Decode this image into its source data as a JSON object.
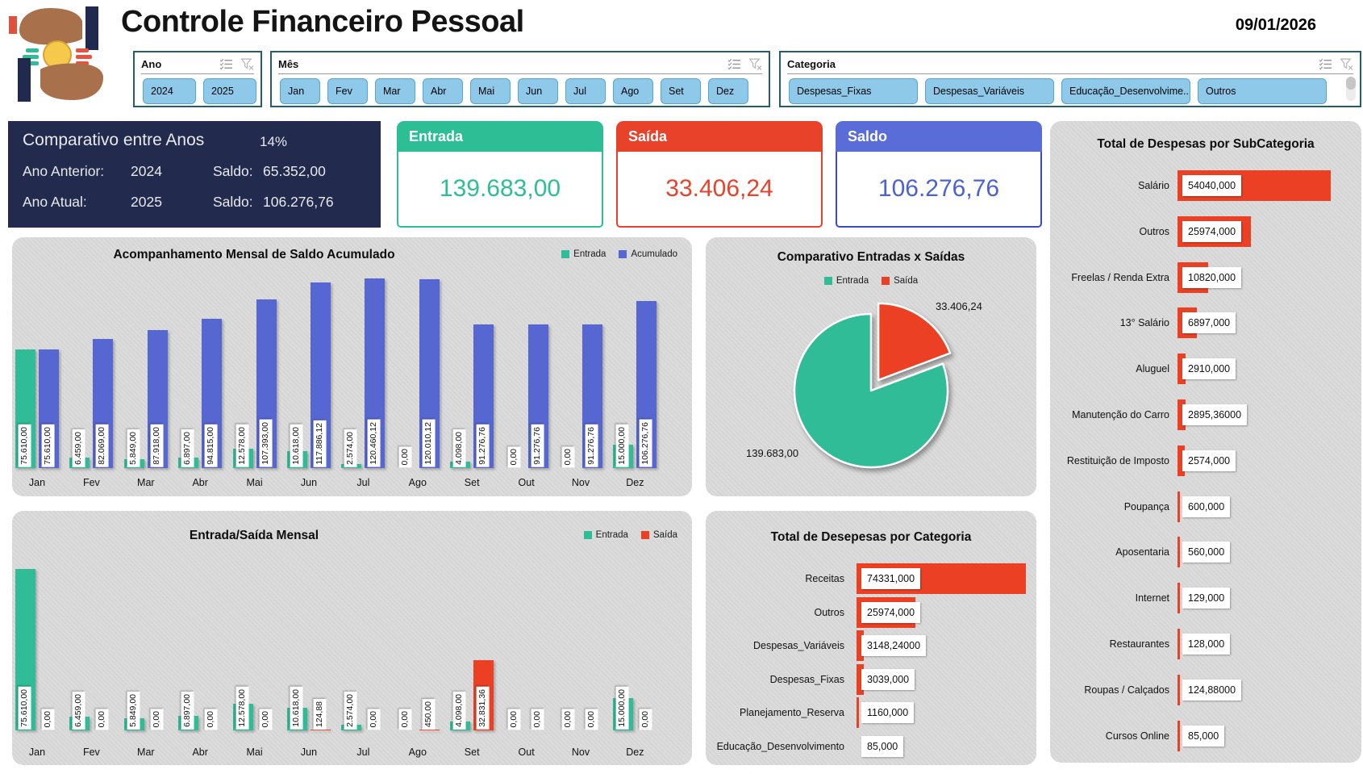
{
  "header": {
    "title": "Controle Financeiro Pessoal",
    "date": "09/01/2026",
    "logo": "hands-holding-coin-logo"
  },
  "slicers": {
    "ano": {
      "label": "Ano",
      "items": [
        "2024",
        "2025"
      ]
    },
    "mes": {
      "label": "Mês",
      "items": [
        "Jan",
        "Fev",
        "Mar",
        "Abr",
        "Mai",
        "Jun",
        "Jul",
        "Ago",
        "Set",
        "Dez"
      ]
    },
    "categoria": {
      "label": "Categoria",
      "items": [
        "Despesas_Fixas",
        "Despesas_Variáveis",
        "Educação_Desenvolvime...",
        "Outros"
      ]
    }
  },
  "comparativo": {
    "title": "Comparativo entre Anos",
    "pct": "14%",
    "rows": [
      {
        "label": "Ano Anterior:",
        "year": "2024",
        "saldo_label": "Saldo:",
        "saldo": "65.352,00"
      },
      {
        "label": "Ano Atual:",
        "year": "2025",
        "saldo_label": "Saldo:",
        "saldo": "106.276,76"
      }
    ]
  },
  "kpis": [
    {
      "label": "Entrada",
      "value": "139.683,00"
    },
    {
      "label": "Saída",
      "value": "33.406,24"
    },
    {
      "label": "Saldo",
      "value": "106.276,76"
    }
  ],
  "charts": {
    "acompanhamento": {
      "type": "bar",
      "title": "Acompanhamento Mensal de Saldo Acumulado",
      "legend": [
        "Entrada",
        "Acumulado"
      ],
      "categories": [
        "Jan",
        "Fev",
        "Mar",
        "Abr",
        "Mai",
        "Jun",
        "Jul",
        "Ago",
        "Set",
        "Out",
        "Nov",
        "Dez"
      ],
      "series": [
        {
          "name": "Entrada",
          "values": [
            75610,
            6459,
            5849,
            6897,
            12578,
            10618,
            2574,
            0,
            4098,
            0,
            0,
            15000
          ],
          "labels": [
            "75.610,00",
            "6.459,00",
            "5.849,00",
            "6.897,00",
            "12.578,00",
            "10.618,00",
            "2.574,00",
            "0,00",
            "4.098,00",
            "0,00",
            "0,00",
            "15.000,00"
          ]
        },
        {
          "name": "Acumulado",
          "values": [
            75610,
            82069,
            87918,
            94815,
            107393,
            117886.12,
            120460.12,
            120010.12,
            91276.76,
            91276.76,
            91276.76,
            106276.76
          ],
          "labels": [
            "75.610,00",
            "82.069,00",
            "87.918,00",
            "94.815,00",
            "107.393,00",
            "117.886,12",
            "120.460,12",
            "120.010,12",
            "91.276,76",
            "91.276,76",
            "91.276,76",
            "106.276,76"
          ]
        }
      ]
    },
    "pie": {
      "type": "pie",
      "title": "Comparativo Entradas x Saídas",
      "legend": [
        "Entrada",
        "Saída"
      ],
      "entrada": 139683,
      "saida": 33406.24,
      "entrada_label": "139.683,00",
      "saida_label": "33.406,24"
    },
    "mensal": {
      "type": "bar",
      "title": "Entrada/Saída Mensal",
      "legend": [
        "Entrada",
        "Saída"
      ],
      "categories": [
        "Jan",
        "Fev",
        "Mar",
        "Abr",
        "Mai",
        "Jun",
        "Jul",
        "Ago",
        "Set",
        "Out",
        "Nov",
        "Dez"
      ],
      "series": [
        {
          "name": "Entrada",
          "values": [
            75610,
            6459,
            5849,
            6897,
            12578,
            10618,
            2574,
            0,
            4098,
            0,
            0,
            15000
          ],
          "labels": [
            "75.610,00",
            "6.459,00",
            "5.849,00",
            "6.897,00",
            "12.578,00",
            "10.618,00",
            "2.574,00",
            "0,00",
            "4.098,00",
            "0,00",
            "0,00",
            "15.000,00"
          ]
        },
        {
          "name": "Saída",
          "values": [
            0,
            0,
            0,
            0,
            0,
            124.88,
            0,
            450,
            32831.36,
            0,
            0,
            0
          ],
          "labels": [
            "0,00",
            "0,00",
            "0,00",
            "0,00",
            "0,00",
            "124,88",
            "0,00",
            "450,00",
            "32.831,36",
            "0,00",
            "0,00",
            "0,00"
          ]
        }
      ]
    },
    "categoria": {
      "type": "bar",
      "title": "Total de Desepesas por Categoria",
      "categories": [
        "Receitas",
        "Outros",
        "Despesas_Variáveis",
        "Despesas_Fixas",
        "Planejamento_Reserva",
        "Educação_Desenvolvimento"
      ],
      "values": [
        74331,
        25974,
        3148.24,
        3039,
        1160,
        85
      ],
      "labels": [
        "74331,000",
        "25974,000",
        "3148,24000",
        "3039,000",
        "1160,000",
        "85,000"
      ]
    },
    "subcategoria": {
      "type": "bar",
      "title": "Total de Despesas por SubCategoria",
      "categories": [
        "Salário",
        "Outros",
        "Freelas / Renda Extra",
        "13° Salário",
        "Aluguel",
        "Manutenção do Carro",
        "Restituição de Imposto",
        "Poupança",
        "Aposentaria",
        "Internet",
        "Restaurantes",
        "Roupas / Calçados",
        "Cursos Online"
      ],
      "values": [
        54040,
        25974,
        10820,
        6897,
        2910,
        2895.36,
        2574,
        600,
        560,
        129,
        128,
        124.88,
        85
      ],
      "labels": [
        "54040,000",
        "25974,000",
        "10820,000",
        "6897,000",
        "2910,000",
        "2895,36000",
        "2574,000",
        "600,000",
        "560,000",
        "129,000",
        "128,000",
        "124,88000",
        "85,000"
      ]
    }
  },
  "colors": {
    "green": "#30BC96",
    "blue_bar": "#5767D2",
    "red": "#EB4024",
    "navy_panel": "#222B4D",
    "kpi_entrada": "#2DBE96",
    "kpi_saida": "#E9422B",
    "kpi_saldo_header": "#5A6CD8",
    "kpi_saldo_border": "#3A4BC0",
    "kpi_saldo_value": "#4A62D4",
    "slicer_button": "#8FC9EA",
    "panel_gray": "#DADADA"
  }
}
